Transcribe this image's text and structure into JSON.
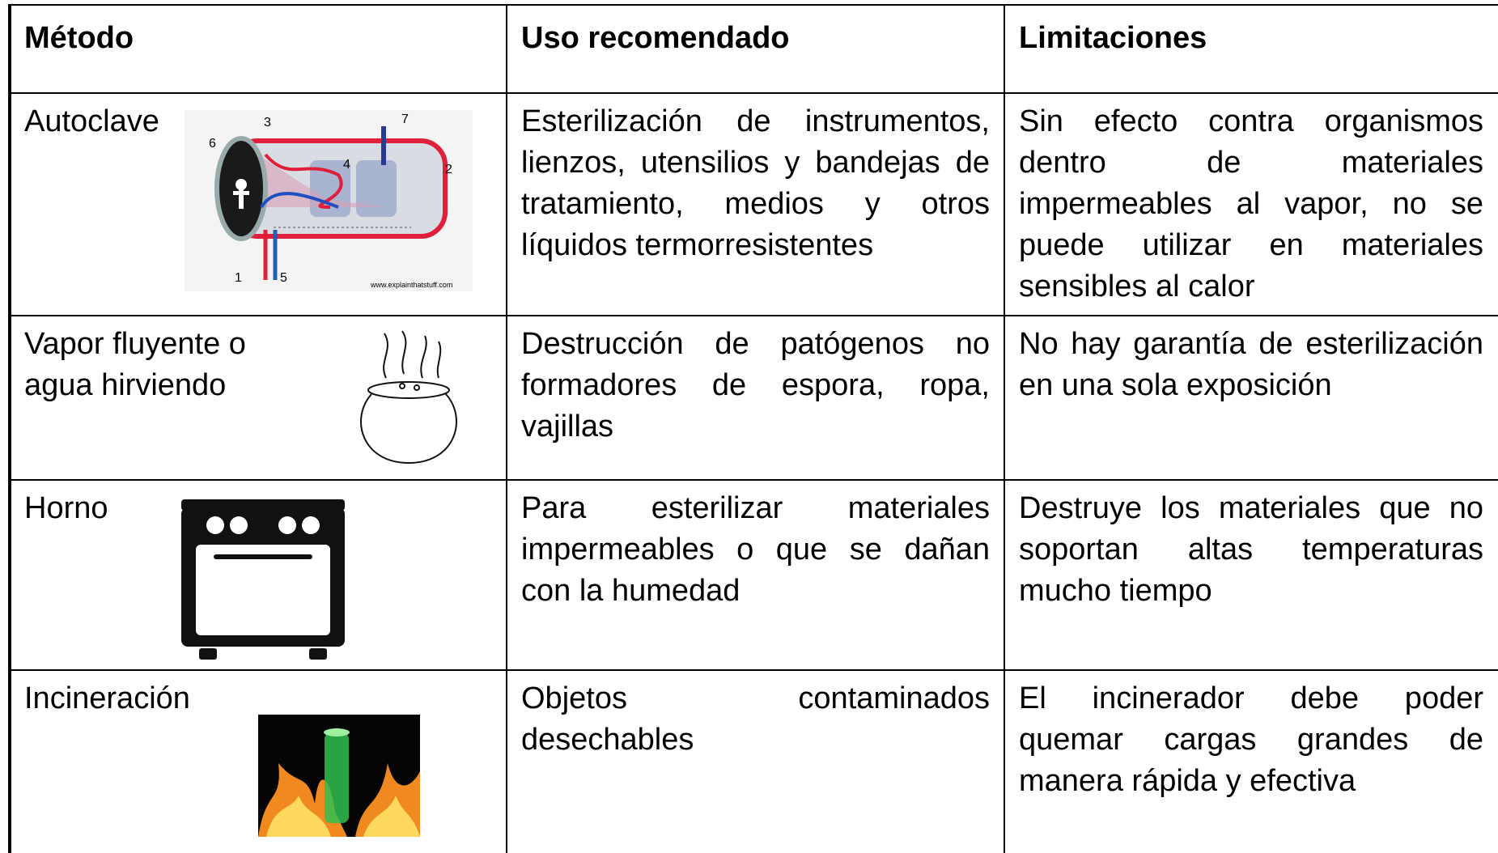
{
  "table": {
    "header": [
      "Método",
      "Uso recomendado",
      "Limitaciones"
    ],
    "rows": [
      [
        "Autoclave",
        "Esterilización de instrumentos, lienzos, utensilios y bandejas de tratamiento, medios y otros líquidos termorresistentes",
        "Sin efecto contra organismos dentro de materiales impermeables al vapor, no se puede utilizar en materiales sensibles al calor"
      ],
      [
        "Vapor fluyente o agua hirviendo",
        "Destrucción de patógenos no formadores de espora, ropa, vajillas",
        "No hay garantía de esterilización en una sola exposición"
      ],
      [
        "Horno",
        "Para esterilizar materiales impermeables o que se dañan con la humedad",
        "Destruye los materiales que no soportan altas temperaturas mucho tiempo"
      ],
      [
        "Incineración",
        "Objetos contaminados desechables",
        "El incinerador debe poder quemar cargas grandes de manera rápida y efectiva"
      ]
    ]
  },
  "autoclave_diagram": {
    "labels": [
      "1",
      "2",
      "3",
      "4",
      "5",
      "6",
      "7"
    ],
    "credit": "www.explainthatstuff.com"
  }
}
